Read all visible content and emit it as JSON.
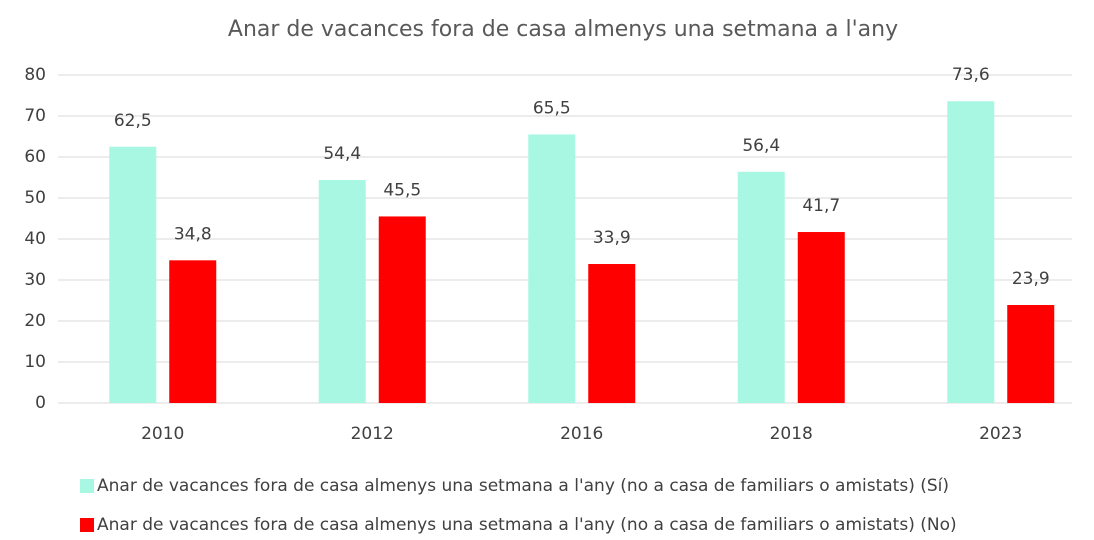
{
  "chart_data": {
    "type": "bar",
    "title": "Anar de vacances fora de casa almenys una setmana a l'any",
    "categories": [
      "2010",
      "2012",
      "2016",
      "2018",
      "2023"
    ],
    "series": [
      {
        "name": "Anar de vacances fora de casa almenys una setmana a l'any (no a casa de familiars o amistats) (Sí)",
        "color": "#a8f7e3",
        "values": [
          62.5,
          54.4,
          65.5,
          56.4,
          73.6
        ],
        "value_labels": [
          "62,5",
          "54,4",
          "65,5",
          "56,4",
          "73,6"
        ]
      },
      {
        "name": "Anar de vacances fora de casa almenys una setmana a l'any (no a casa de familiars o amistats) (No)",
        "color": "#ff0000",
        "values": [
          34.8,
          45.5,
          33.9,
          41.7,
          23.9
        ],
        "value_labels": [
          "34,8",
          "45,5",
          "33,9",
          "41,7",
          "23,9"
        ]
      }
    ],
    "ylim": [
      0,
      80
    ],
    "yticks": [
      0,
      10,
      20,
      30,
      40,
      50,
      60,
      70,
      80
    ],
    "grid": true,
    "legend": "bottom"
  }
}
